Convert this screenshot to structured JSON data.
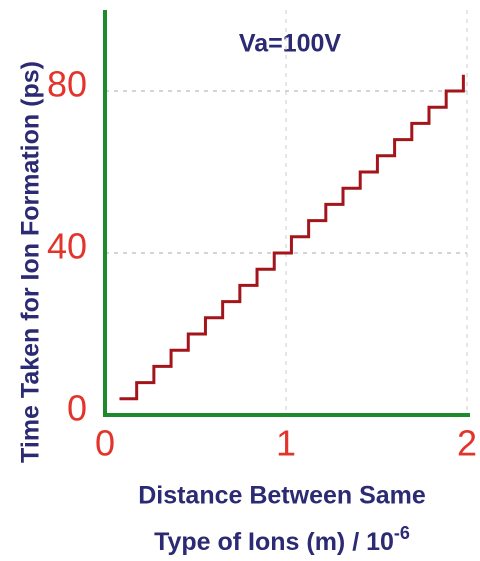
{
  "chart_data": {
    "type": "line",
    "step": "post",
    "annotation": "Va=100V",
    "y_label": "Time Taken for Ion Formation (ps)",
    "x_label": [
      "Distance Between Same",
      {
        "text": "Type of Ions (m) / 10",
        "superscript": "-6"
      }
    ],
    "x": [
      0.08,
      0.175,
      0.27,
      0.365,
      0.46,
      0.555,
      0.65,
      0.745,
      0.84,
      0.935,
      1.03,
      1.125,
      1.22,
      1.315,
      1.41,
      1.505,
      1.6,
      1.695,
      1.79,
      1.885,
      1.98
    ],
    "series": [
      {
        "color": "#a3151a",
        "values": [
          4,
          8,
          12,
          16,
          20,
          24,
          28,
          32,
          36,
          40,
          44,
          48,
          52,
          56,
          60,
          64,
          68,
          72,
          76,
          80,
          84
        ]
      }
    ],
    "xlim": [
      0,
      2
    ],
    "xticks": [
      0,
      1,
      2
    ],
    "ylim": [
      0,
      100
    ],
    "yticks": [
      0,
      40,
      80
    ],
    "grid": true,
    "axis_color": "#1e8a2e"
  }
}
